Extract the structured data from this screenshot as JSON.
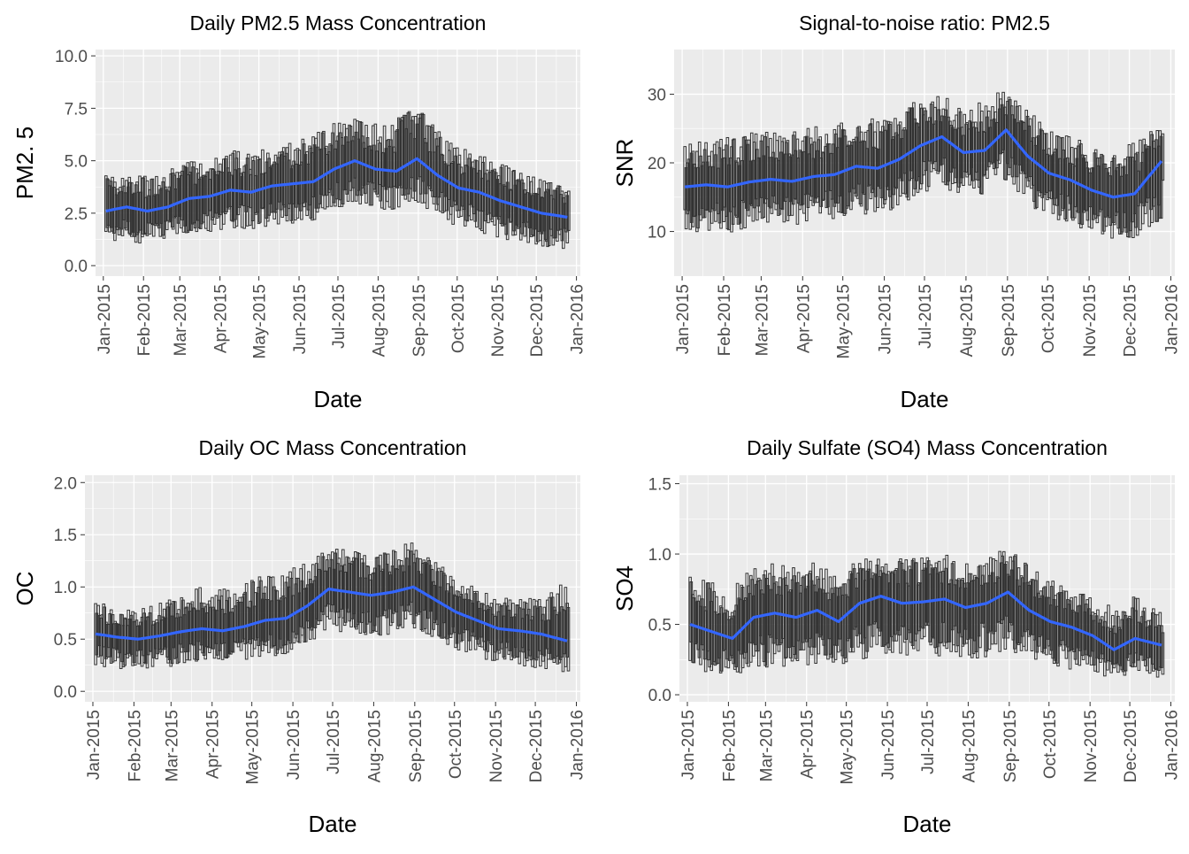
{
  "chart_data": [
    {
      "type": "boxplot_with_line",
      "title": "Daily PM2.5 Mass Concentration",
      "xlabel": "Date",
      "ylabel": "PM2. 5",
      "ylim": [
        -0.5,
        10.3
      ],
      "yticks": [
        0.0,
        2.5,
        5.0,
        7.5,
        10.0
      ],
      "ytick_labels": [
        "0.0",
        "2.5",
        "5.0",
        "7.5",
        "10.0"
      ],
      "xlim": [
        "2014-12-26",
        "2016-01-04"
      ],
      "xticks": [
        "Jan-2015",
        "Feb-2015",
        "Mar-2015",
        "Apr-2015",
        "May-2015",
        "Jun-2015",
        "Jul-2015",
        "Aug-2015",
        "Sep-2015",
        "Oct-2015",
        "Nov-2015",
        "Dec-2015",
        "Jan-2016"
      ],
      "grid": true,
      "series": [
        {
          "name": "",
          "kind": "trend",
          "x": [
            "2015-01-03",
            "2015-01-19",
            "2015-02-04",
            "2015-02-20",
            "2015-03-08",
            "2015-03-24",
            "2015-04-09",
            "2015-04-25",
            "2015-05-11",
            "2015-05-27",
            "2015-06-12",
            "2015-06-28",
            "2015-07-14",
            "2015-07-30",
            "2015-08-15",
            "2015-08-31",
            "2015-09-16",
            "2015-10-02",
            "2015-10-18",
            "2015-11-03",
            "2015-11-19",
            "2015-12-05",
            "2015-12-26"
          ],
          "values": [
            2.6,
            2.8,
            2.6,
            2.8,
            3.2,
            3.3,
            3.6,
            3.5,
            3.8,
            3.9,
            4.0,
            4.6,
            5.0,
            4.6,
            4.5,
            5.1,
            4.3,
            3.7,
            3.5,
            3.1,
            2.8,
            2.5,
            2.3
          ]
        },
        {
          "name": "",
          "kind": "daily_boxes",
          "x_start": "2015-01-03",
          "x_end": "2015-12-26",
          "median": [
            2.6,
            2.8,
            2.6,
            2.8,
            3.2,
            3.3,
            3.6,
            3.5,
            3.8,
            3.9,
            4.0,
            4.6,
            5.0,
            4.6,
            4.5,
            5.1,
            4.3,
            3.7,
            3.5,
            3.1,
            2.8,
            2.5,
            2.3
          ],
          "low": [
            1.2,
            1.1,
            1.0,
            1.2,
            1.5,
            1.6,
            1.8,
            1.7,
            1.9,
            2.0,
            2.1,
            2.6,
            3.0,
            2.7,
            2.6,
            3.0,
            2.3,
            1.8,
            1.6,
            1.3,
            1.1,
            0.9,
            0.8
          ],
          "high": [
            4.3,
            4.5,
            4.3,
            4.6,
            5.0,
            5.1,
            5.6,
            5.4,
            5.8,
            5.9,
            6.2,
            6.9,
            7.1,
            6.8,
            7.0,
            7.6,
            6.5,
            5.7,
            5.4,
            4.9,
            4.5,
            4.1,
            3.8
          ]
        }
      ]
    },
    {
      "type": "boxplot_with_line",
      "title": "Signal-to-noise ratio: PM2.5",
      "xlabel": "Date",
      "ylabel": "SNR",
      "ylim": [
        3.5,
        36.5
      ],
      "yticks": [
        10,
        20,
        30
      ],
      "ytick_labels": [
        "10",
        "20",
        "30"
      ],
      "xlim": [
        "2014-12-26",
        "2016-01-04"
      ],
      "xticks": [
        "Jan-2015",
        "Feb-2015",
        "Mar-2015",
        "Apr-2015",
        "May-2015",
        "Jun-2015",
        "Jul-2015",
        "Aug-2015",
        "Sep-2015",
        "Oct-2015",
        "Nov-2015",
        "Dec-2015",
        "Jan-2016"
      ],
      "grid": true,
      "series": [
        {
          "name": "",
          "kind": "trend",
          "x": [
            "2015-01-03",
            "2015-01-19",
            "2015-02-04",
            "2015-02-20",
            "2015-03-08",
            "2015-03-24",
            "2015-04-09",
            "2015-04-25",
            "2015-05-11",
            "2015-05-27",
            "2015-06-12",
            "2015-06-28",
            "2015-07-14",
            "2015-07-30",
            "2015-08-15",
            "2015-08-31",
            "2015-09-16",
            "2015-10-02",
            "2015-10-18",
            "2015-11-03",
            "2015-11-19",
            "2015-12-05",
            "2015-12-26"
          ],
          "values": [
            16.5,
            16.8,
            16.5,
            17.2,
            17.6,
            17.3,
            18.0,
            18.3,
            19.5,
            19.2,
            20.5,
            22.5,
            23.8,
            21.5,
            21.8,
            24.8,
            21.0,
            18.5,
            17.5,
            16.0,
            15.0,
            15.5,
            20.5
          ]
        },
        {
          "name": "",
          "kind": "daily_boxes",
          "x_start": "2015-01-03",
          "x_end": "2015-12-26",
          "median": [
            16.5,
            16.8,
            16.5,
            17.2,
            17.6,
            17.3,
            18.0,
            18.3,
            19.5,
            19.2,
            20.5,
            22.5,
            23.8,
            21.5,
            21.8,
            24.8,
            21.0,
            18.5,
            17.5,
            16.0,
            15.0,
            15.5,
            20.5
          ],
          "low": [
            10.0,
            9.8,
            9.5,
            10.5,
            11.0,
            10.8,
            11.5,
            11.8,
            12.5,
            12.5,
            13.5,
            15.5,
            16.5,
            15.0,
            15.5,
            17.5,
            14.0,
            11.5,
            10.5,
            9.5,
            9.0,
            9.0,
            12.0
          ],
          "high": [
            22.5,
            23.5,
            24.0,
            24.5,
            24.8,
            24.5,
            25.5,
            25.5,
            26.5,
            26.5,
            27.5,
            29.5,
            30.0,
            28.5,
            29.0,
            31.0,
            28.0,
            25.5,
            24.0,
            22.5,
            22.0,
            23.0,
            26.0
          ]
        }
      ]
    },
    {
      "type": "boxplot_with_line",
      "title": "Daily OC Mass Concentration",
      "xlabel": "Date",
      "ylabel": "OC",
      "ylim": [
        -0.1,
        2.07
      ],
      "yticks": [
        0.0,
        0.5,
        1.0,
        1.5,
        2.0
      ],
      "ytick_labels": [
        "0.0",
        "0.5",
        "1.0",
        "1.5",
        "2.0"
      ],
      "xlim": [
        "2014-12-26",
        "2016-01-04"
      ],
      "xticks": [
        "Jan-2015",
        "Feb-2015",
        "Mar-2015",
        "Apr-2015",
        "May-2015",
        "Jun-2015",
        "Jul-2015",
        "Aug-2015",
        "Sep-2015",
        "Oct-2015",
        "Nov-2015",
        "Dec-2015",
        "Jan-2016"
      ],
      "grid": true,
      "series": [
        {
          "name": "",
          "kind": "trend",
          "x": [
            "2015-01-03",
            "2015-01-19",
            "2015-02-04",
            "2015-02-20",
            "2015-03-08",
            "2015-03-24",
            "2015-04-09",
            "2015-04-25",
            "2015-05-11",
            "2015-05-27",
            "2015-06-12",
            "2015-06-28",
            "2015-07-14",
            "2015-07-30",
            "2015-08-15",
            "2015-08-31",
            "2015-09-16",
            "2015-10-02",
            "2015-10-18",
            "2015-11-03",
            "2015-11-19",
            "2015-12-05",
            "2015-12-26"
          ],
          "values": [
            0.55,
            0.52,
            0.5,
            0.53,
            0.57,
            0.6,
            0.58,
            0.62,
            0.68,
            0.7,
            0.82,
            0.98,
            0.95,
            0.92,
            0.95,
            1.0,
            0.88,
            0.76,
            0.68,
            0.6,
            0.58,
            0.55,
            0.48
          ]
        },
        {
          "name": "",
          "kind": "daily_boxes",
          "x_start": "2015-01-03",
          "x_end": "2015-12-26",
          "median": [
            0.55,
            0.52,
            0.5,
            0.53,
            0.57,
            0.6,
            0.58,
            0.62,
            0.68,
            0.7,
            0.82,
            0.98,
            0.95,
            0.92,
            0.95,
            1.0,
            0.88,
            0.76,
            0.68,
            0.6,
            0.58,
            0.55,
            0.48
          ],
          "low": [
            0.25,
            0.22,
            0.2,
            0.22,
            0.25,
            0.27,
            0.26,
            0.3,
            0.33,
            0.35,
            0.45,
            0.58,
            0.55,
            0.52,
            0.55,
            0.6,
            0.5,
            0.4,
            0.33,
            0.27,
            0.25,
            0.22,
            0.18
          ],
          "high": [
            0.85,
            0.82,
            0.8,
            0.85,
            0.95,
            1.0,
            0.98,
            1.05,
            1.12,
            1.15,
            1.25,
            1.4,
            1.35,
            1.3,
            1.35,
            1.45,
            1.25,
            1.1,
            1.0,
            0.9,
            0.9,
            0.88,
            1.1
          ]
        }
      ]
    },
    {
      "type": "boxplot_with_line",
      "title": "Daily Sulfate (SO4) Mass Concentration",
      "xlabel": "Date",
      "ylabel": "SO4",
      "ylim": [
        -0.05,
        1.56
      ],
      "yticks": [
        0.0,
        0.5,
        1.0,
        1.5
      ],
      "ytick_labels": [
        "0.0",
        "0.5",
        "1.0",
        "1.5"
      ],
      "xlim": [
        "2014-12-26",
        "2016-01-04"
      ],
      "xticks": [
        "Jan-2015",
        "Feb-2015",
        "Mar-2015",
        "Apr-2015",
        "May-2015",
        "Jun-2015",
        "Jul-2015",
        "Aug-2015",
        "Sep-2015",
        "Oct-2015",
        "Nov-2015",
        "Dec-2015",
        "Jan-2016"
      ],
      "grid": true,
      "series": [
        {
          "name": "",
          "kind": "trend",
          "x": [
            "2015-01-03",
            "2015-01-19",
            "2015-02-04",
            "2015-02-20",
            "2015-03-08",
            "2015-03-24",
            "2015-04-09",
            "2015-04-25",
            "2015-05-11",
            "2015-05-27",
            "2015-06-12",
            "2015-06-28",
            "2015-07-14",
            "2015-07-30",
            "2015-08-15",
            "2015-08-31",
            "2015-09-16",
            "2015-10-02",
            "2015-10-18",
            "2015-11-03",
            "2015-11-19",
            "2015-12-05",
            "2015-12-26"
          ],
          "values": [
            0.5,
            0.45,
            0.4,
            0.55,
            0.58,
            0.55,
            0.6,
            0.52,
            0.65,
            0.7,
            0.65,
            0.66,
            0.68,
            0.62,
            0.65,
            0.73,
            0.6,
            0.52,
            0.48,
            0.42,
            0.32,
            0.4,
            0.35
          ]
        },
        {
          "name": "",
          "kind": "daily_boxes",
          "x_start": "2015-01-03",
          "x_end": "2015-12-26",
          "median": [
            0.5,
            0.45,
            0.4,
            0.55,
            0.58,
            0.55,
            0.6,
            0.52,
            0.65,
            0.7,
            0.65,
            0.66,
            0.68,
            0.62,
            0.65,
            0.73,
            0.6,
            0.52,
            0.48,
            0.42,
            0.32,
            0.4,
            0.35
          ],
          "low": [
            0.18,
            0.15,
            0.13,
            0.18,
            0.2,
            0.2,
            0.22,
            0.2,
            0.25,
            0.28,
            0.25,
            0.26,
            0.28,
            0.25,
            0.27,
            0.3,
            0.25,
            0.2,
            0.18,
            0.15,
            0.12,
            0.14,
            0.12
          ],
          "high": [
            0.85,
            0.8,
            0.75,
            0.95,
            0.95,
            0.9,
            0.95,
            0.85,
            0.98,
            1.0,
            0.98,
            0.98,
            1.0,
            0.95,
            0.97,
            1.05,
            0.92,
            0.82,
            0.78,
            0.7,
            0.62,
            0.7,
            0.6
          ]
        }
      ]
    }
  ],
  "style": {
    "panel_background": "#ebebeb",
    "grid_color": "#ffffff",
    "box_color": "#333333",
    "trend_color": "#3366ff",
    "text_color": "#000000",
    "tick_text_color": "#4d4d4d"
  }
}
